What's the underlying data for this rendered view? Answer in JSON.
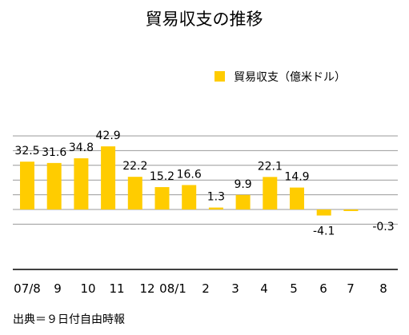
{
  "chart_data": {
    "type": "bar",
    "title": "貿易収支の推移",
    "categories": [
      "07/8",
      "9",
      "10",
      "11",
      "12",
      "08/1",
      "2",
      "3",
      "4",
      "5",
      "6",
      "7",
      "8"
    ],
    "series": [
      {
        "name": "貿易収支（億米ドル）",
        "values": [
          32.5,
          31.6,
          34.8,
          42.9,
          22.2,
          15.2,
          16.6,
          1.3,
          9.9,
          22.1,
          14.9,
          -4.1,
          -0.3
        ],
        "data_labels": [
          "32.5",
          "31.6",
          "34.8",
          "42.9",
          "22.2",
          "15.2",
          "16.6",
          "1.3",
          "9.9",
          "22.1",
          "14.9",
          "-4.1",
          "-0.3"
        ]
      }
    ],
    "ylim": [
      -20,
      50
    ],
    "grid": true,
    "legend_position": "top-right",
    "bar_color": "#FFCC00",
    "grid_color": "#999999"
  },
  "source_note": "出典＝９日付自由時報"
}
